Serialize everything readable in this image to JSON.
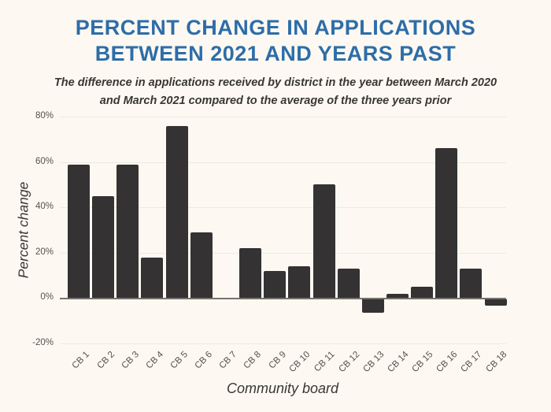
{
  "header": {
    "title_line1": "PERCENT CHANGE IN APPLICATIONS",
    "title_line2": "BETWEEN 2021 AND YEARS PAST",
    "subtitle_line1": "The difference in applications received by district in the year between March 2020",
    "subtitle_line2": "and March 2021 compared to the average of the three years prior"
  },
  "colors": {
    "background": "#fdf9f2",
    "title_blue": "#2e6da8",
    "bar": "#343232",
    "gridline": "#edeae3",
    "zero_line": "#76726d",
    "text_dark": "#3a3733",
    "tick_text": "#55514b"
  },
  "chart_data": {
    "type": "bar",
    "title": "Percent change in applications between 2021 and years past",
    "categories": [
      "CB 1",
      "CB 2",
      "CB 3",
      "CB 4",
      "CB 5",
      "CB 6",
      "CB 7",
      "CB 8",
      "CB 9",
      "CB 10",
      "CB 11",
      "CB 12",
      "CB 13",
      "CB 14",
      "CB 15",
      "CB 16",
      "CB 17",
      "CB 18"
    ],
    "values": [
      59,
      45,
      59,
      18,
      76,
      29,
      0,
      22,
      12,
      14,
      50,
      13,
      -6,
      2,
      5,
      66,
      13,
      -3
    ],
    "xlabel": "Community board",
    "ylabel": "Percent change",
    "ylim": [
      -20,
      80
    ],
    "yticks": [
      80,
      60,
      40,
      20,
      0,
      -20
    ],
    "ytick_labels": [
      "80%",
      "60%",
      "40%",
      "20%",
      "0%",
      "-20%"
    ],
    "grid": true,
    "legend": null
  }
}
